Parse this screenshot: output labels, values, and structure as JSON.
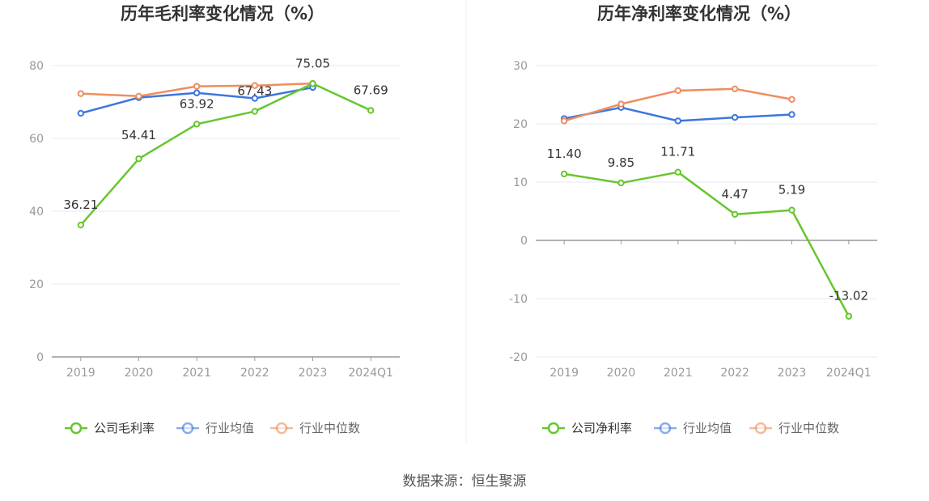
{
  "colors": {
    "company": "#66c62e",
    "avg": "#3d76dd",
    "median": "#f08d5e",
    "grid": "#e6e9f0",
    "axis": "#999999"
  },
  "chart_data": [
    {
      "type": "line",
      "title": "历年毛利率变化情况（%）",
      "categories": [
        "2019",
        "2020",
        "2021",
        "2022",
        "2023",
        "2024Q1"
      ],
      "ylim": [
        0,
        80
      ],
      "yticks": [
        0,
        20,
        40,
        60,
        80
      ],
      "grid": true,
      "legend_position": "bottom",
      "series": [
        {
          "name": "公司毛利率",
          "color": "#66c62e",
          "values": [
            36.21,
            54.41,
            63.92,
            67.43,
            75.05,
            67.69
          ],
          "labels": [
            "36.21",
            "54.41",
            "63.92",
            "67.43",
            "75.05",
            "67.69"
          ]
        },
        {
          "name": "行业均值",
          "color": "#3d76dd",
          "values": [
            66.9,
            71.2,
            72.5,
            71.0,
            74.0,
            null
          ]
        },
        {
          "name": "行业中位数",
          "color": "#f08d5e",
          "values": [
            72.3,
            71.6,
            74.3,
            74.5,
            75.1,
            null
          ]
        }
      ]
    },
    {
      "type": "line",
      "title": "历年净利率变化情况（%）",
      "categories": [
        "2019",
        "2020",
        "2021",
        "2022",
        "2023",
        "2024Q1"
      ],
      "ylim": [
        -20,
        30
      ],
      "yticks": [
        -20,
        -10,
        0,
        10,
        20,
        30
      ],
      "grid": true,
      "legend_position": "bottom",
      "series": [
        {
          "name": "公司净利率",
          "color": "#66c62e",
          "values": [
            11.4,
            9.85,
            11.71,
            4.47,
            5.19,
            -13.02
          ],
          "labels": [
            "11.40",
            "9.85",
            "11.71",
            "4.47",
            "5.19",
            "-13.02"
          ]
        },
        {
          "name": "行业均值",
          "color": "#3d76dd",
          "values": [
            20.9,
            22.8,
            20.5,
            21.1,
            21.6,
            null
          ]
        },
        {
          "name": "行业中位数",
          "color": "#f08d5e",
          "values": [
            20.5,
            23.4,
            25.7,
            26.0,
            24.2,
            null
          ]
        }
      ]
    }
  ],
  "source": "数据来源：恒生聚源"
}
